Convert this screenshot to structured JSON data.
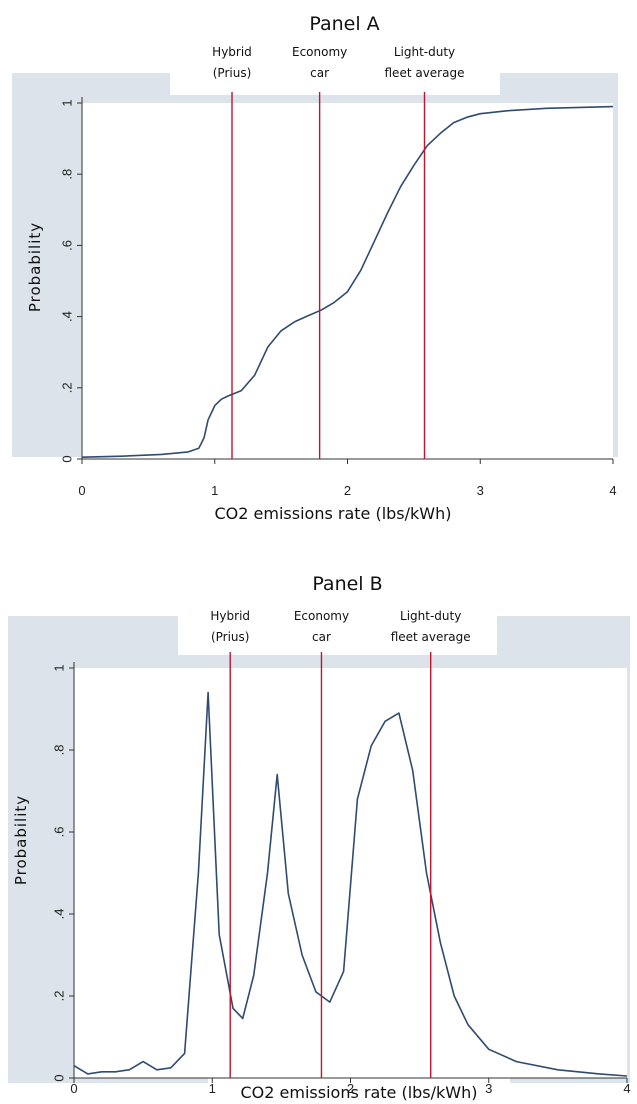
{
  "chart_data": [
    {
      "type": "line",
      "title": "Panel A",
      "xlabel": "CO2 emissions rate (lbs/kWh)",
      "ylabel": "Probability",
      "xlim": [
        0,
        4
      ],
      "ylim": [
        0,
        1
      ],
      "xticks": [
        "0",
        "1",
        "2",
        "3",
        "4"
      ],
      "yticks": [
        "0",
        ".2",
        ".4",
        ".6",
        ".8",
        "1"
      ],
      "grid": false,
      "background_color": "#dde3ea",
      "line_color": "#2f4b6e",
      "reference_color": "#c0142f",
      "reference_lines": [
        {
          "x": 1.13,
          "label_lines": [
            "Hybrid",
            "(Prius)"
          ]
        },
        {
          "x": 1.79,
          "label_lines": [
            "Economy",
            "car"
          ]
        },
        {
          "x": 2.58,
          "label_lines": [
            "Light-duty",
            "fleet average"
          ]
        }
      ],
      "series": [
        {
          "x": [
            0,
            0.3,
            0.6,
            0.8,
            0.88,
            0.92,
            0.95,
            1.0,
            1.05,
            1.1,
            1.2,
            1.3,
            1.4,
            1.5,
            1.6,
            1.7,
            1.8,
            1.9,
            2.0,
            2.1,
            2.2,
            2.3,
            2.4,
            2.5,
            2.6,
            2.7,
            2.8,
            2.9,
            3.0,
            3.2,
            3.5,
            4.0
          ],
          "y": [
            0.005,
            0.008,
            0.013,
            0.02,
            0.03,
            0.06,
            0.11,
            0.15,
            0.168,
            0.177,
            0.192,
            0.235,
            0.315,
            0.36,
            0.385,
            0.402,
            0.418,
            0.44,
            0.47,
            0.53,
            0.61,
            0.69,
            0.765,
            0.825,
            0.88,
            0.915,
            0.945,
            0.96,
            0.97,
            0.978,
            0.985,
            0.99
          ]
        }
      ]
    },
    {
      "type": "line",
      "title": "Panel B",
      "xlabel": "CO2 emissions rate (lbs/kWh)",
      "ylabel": "Probability",
      "xlim": [
        0,
        4
      ],
      "ylim": [
        0,
        1
      ],
      "xticks": [
        "0",
        "1",
        "2",
        "3",
        "4"
      ],
      "yticks": [
        "0",
        ".2",
        ".4",
        ".6",
        ".8",
        "1"
      ],
      "grid": false,
      "background_color": "#dde3ea",
      "line_color": "#2f4b6e",
      "reference_color": "#c0142f",
      "reference_lines": [
        {
          "x": 1.13,
          "label_lines": [
            "Hybrid",
            "(Prius)"
          ]
        },
        {
          "x": 1.79,
          "label_lines": [
            "Economy",
            "car"
          ]
        },
        {
          "x": 2.58,
          "label_lines": [
            "Light-duty",
            "fleet average"
          ]
        }
      ],
      "series": [
        {
          "x": [
            0,
            0.1,
            0.2,
            0.3,
            0.4,
            0.5,
            0.6,
            0.7,
            0.8,
            0.9,
            0.97,
            1.05,
            1.15,
            1.22,
            1.3,
            1.4,
            1.47,
            1.55,
            1.65,
            1.75,
            1.85,
            1.95,
            2.05,
            2.15,
            2.25,
            2.35,
            2.45,
            2.55,
            2.65,
            2.75,
            2.85,
            3.0,
            3.2,
            3.5,
            3.8,
            4.0
          ],
          "y": [
            0.03,
            0.01,
            0.015,
            0.015,
            0.02,
            0.04,
            0.02,
            0.025,
            0.06,
            0.5,
            0.94,
            0.35,
            0.17,
            0.145,
            0.25,
            0.5,
            0.74,
            0.45,
            0.3,
            0.21,
            0.185,
            0.26,
            0.68,
            0.81,
            0.87,
            0.89,
            0.75,
            0.5,
            0.33,
            0.2,
            0.13,
            0.07,
            0.04,
            0.02,
            0.01,
            0.005
          ]
        }
      ]
    }
  ]
}
